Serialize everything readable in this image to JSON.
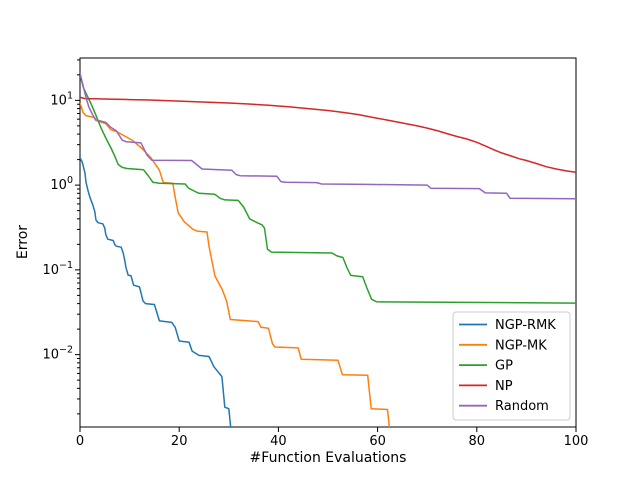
{
  "chart_data": {
    "type": "line",
    "title": "",
    "xlabel": "#Function Evaluations",
    "ylabel": "Error",
    "xlim": [
      0,
      100
    ],
    "ylim": [
      0.0014,
      31.6
    ],
    "yscale": "log",
    "xscale": "linear",
    "grid": false,
    "x_ticks": [
      0,
      20,
      40,
      60,
      80,
      100
    ],
    "x_tick_labels": [
      "0",
      "20",
      "40",
      "60",
      "80",
      "100"
    ],
    "y_tick_exponents": [
      "1",
      "0",
      "−1",
      "−2"
    ],
    "y_tick_values": [
      10,
      1,
      0.1,
      0.01
    ],
    "legend_position": "lower right",
    "axis_color": "#000000",
    "background_color": "#ffffff",
    "legend_border_color": "#cccccc",
    "series": [
      {
        "name": "NGP-RMK",
        "color": "#1f77b4",
        "points": [
          [
            0,
            2.1
          ],
          [
            0.4,
            1.9
          ],
          [
            0.6,
            1.72
          ],
          [
            1,
            1.38
          ],
          [
            1.2,
            1.08
          ],
          [
            1.6,
            0.87
          ],
          [
            2,
            0.72
          ],
          [
            2.6,
            0.58
          ],
          [
            3,
            0.48
          ],
          [
            3.2,
            0.39
          ],
          [
            3.6,
            0.36
          ],
          [
            4.6,
            0.35
          ],
          [
            5,
            0.31
          ],
          [
            5.2,
            0.26
          ],
          [
            5.6,
            0.23
          ],
          [
            6.7,
            0.222
          ],
          [
            7,
            0.2
          ],
          [
            7.3,
            0.19
          ],
          [
            8.3,
            0.185
          ],
          [
            8.7,
            0.158
          ],
          [
            9,
            0.132
          ],
          [
            9.3,
            0.105
          ],
          [
            9.7,
            0.087
          ],
          [
            10.3,
            0.085
          ],
          [
            10.8,
            0.066
          ],
          [
            12,
            0.063
          ],
          [
            12.7,
            0.043
          ],
          [
            13.2,
            0.04
          ],
          [
            15,
            0.039
          ],
          [
            16,
            0.025
          ],
          [
            18.5,
            0.024
          ],
          [
            19.2,
            0.021
          ],
          [
            20,
            0.0145
          ],
          [
            22,
            0.014
          ],
          [
            22.6,
            0.011
          ],
          [
            24,
            0.0098
          ],
          [
            26,
            0.0095
          ],
          [
            27,
            0.0072
          ],
          [
            28.6,
            0.0055
          ],
          [
            29.2,
            0.0024
          ],
          [
            30,
            0.0023
          ],
          [
            30.4,
            0.00135
          ]
        ]
      },
      {
        "name": "NGP-MK",
        "color": "#ff7f0e",
        "points": [
          [
            0,
            9.3
          ],
          [
            0.6,
            7.2
          ],
          [
            1.2,
            6.6
          ],
          [
            2.8,
            6.3
          ],
          [
            3.2,
            5.8
          ],
          [
            5.2,
            5.3
          ],
          [
            6.2,
            4.5
          ],
          [
            7.3,
            4.3
          ],
          [
            9,
            3.8
          ],
          [
            10.5,
            3.4
          ],
          [
            12.5,
            2.7
          ],
          [
            14.3,
            2.1
          ],
          [
            16,
            1.5
          ],
          [
            16.8,
            1.07
          ],
          [
            18.7,
            1.05
          ],
          [
            19.2,
            0.72
          ],
          [
            19.8,
            0.47
          ],
          [
            21,
            0.37
          ],
          [
            22.8,
            0.3
          ],
          [
            23.8,
            0.285
          ],
          [
            25.6,
            0.28
          ],
          [
            26,
            0.19
          ],
          [
            27.2,
            0.085
          ],
          [
            28.7,
            0.058
          ],
          [
            29.6,
            0.042
          ],
          [
            30.3,
            0.026
          ],
          [
            35.9,
            0.0245
          ],
          [
            36.5,
            0.021
          ],
          [
            38,
            0.0205
          ],
          [
            38.8,
            0.0135
          ],
          [
            39.3,
            0.0123
          ],
          [
            44,
            0.012
          ],
          [
            44.6,
            0.0088
          ],
          [
            52,
            0.0086
          ],
          [
            52.9,
            0.0058
          ],
          [
            58,
            0.0057
          ],
          [
            58.7,
            0.0023
          ],
          [
            62,
            0.00225
          ],
          [
            62.4,
            0.00135
          ]
        ]
      },
      {
        "name": "GP",
        "color": "#2ca02c",
        "points": [
          [
            0,
            20
          ],
          [
            0.7,
            14
          ],
          [
            1.4,
            11.5
          ],
          [
            2.2,
            9.2
          ],
          [
            3.2,
            6.7
          ],
          [
            4.2,
            4.8
          ],
          [
            5.2,
            3.6
          ],
          [
            6.3,
            2.7
          ],
          [
            7,
            2.2
          ],
          [
            7.7,
            1.75
          ],
          [
            8.5,
            1.62
          ],
          [
            9.5,
            1.57
          ],
          [
            12.8,
            1.52
          ],
          [
            13.8,
            1.28
          ],
          [
            14.7,
            1.08
          ],
          [
            16,
            1.05
          ],
          [
            21.2,
            1.03
          ],
          [
            21.9,
            0.92
          ],
          [
            23.2,
            0.84
          ],
          [
            24,
            0.8
          ],
          [
            27.2,
            0.78
          ],
          [
            28.2,
            0.7
          ],
          [
            29.2,
            0.67
          ],
          [
            31.9,
            0.66
          ],
          [
            33,
            0.55
          ],
          [
            34.2,
            0.4
          ],
          [
            35.7,
            0.36
          ],
          [
            36.7,
            0.34
          ],
          [
            37.2,
            0.31
          ],
          [
            37.8,
            0.175
          ],
          [
            38.6,
            0.162
          ],
          [
            50.8,
            0.158
          ],
          [
            51.8,
            0.146
          ],
          [
            53,
            0.14
          ],
          [
            53.8,
            0.107
          ],
          [
            54.6,
            0.086
          ],
          [
            57,
            0.083
          ],
          [
            57.8,
            0.062
          ],
          [
            58.8,
            0.045
          ],
          [
            59.8,
            0.042
          ],
          [
            100,
            0.0405
          ]
        ]
      },
      {
        "name": "NP",
        "color": "#d62728",
        "points": [
          [
            0,
            10.9
          ],
          [
            1,
            10.5
          ],
          [
            3,
            10.45
          ],
          [
            6,
            10.35
          ],
          [
            10,
            10.2
          ],
          [
            14,
            10.1
          ],
          [
            18,
            9.9
          ],
          [
            22,
            9.7
          ],
          [
            26,
            9.5
          ],
          [
            30,
            9.3
          ],
          [
            34,
            9.05
          ],
          [
            38,
            8.75
          ],
          [
            42,
            8.4
          ],
          [
            46,
            8.0
          ],
          [
            50,
            7.6
          ],
          [
            53,
            7.2
          ],
          [
            56,
            6.8
          ],
          [
            59,
            6.3
          ],
          [
            62,
            5.85
          ],
          [
            65,
            5.4
          ],
          [
            68,
            5.0
          ],
          [
            70,
            4.7
          ],
          [
            72,
            4.4
          ],
          [
            74,
            4.05
          ],
          [
            76,
            3.75
          ],
          [
            78,
            3.5
          ],
          [
            80,
            3.2
          ],
          [
            82,
            2.85
          ],
          [
            83.5,
            2.6
          ],
          [
            85,
            2.4
          ],
          [
            87,
            2.2
          ],
          [
            88.5,
            2.05
          ],
          [
            90,
            1.95
          ],
          [
            92,
            1.8
          ],
          [
            94,
            1.65
          ],
          [
            96,
            1.55
          ],
          [
            98,
            1.47
          ],
          [
            100,
            1.42
          ]
        ]
      },
      {
        "name": "Random",
        "color": "#9467bd",
        "points": [
          [
            0,
            21
          ],
          [
            0.6,
            15
          ],
          [
            1.2,
            10.8
          ],
          [
            1.8,
            8.3
          ],
          [
            2.6,
            6.7
          ],
          [
            3.2,
            5.9
          ],
          [
            5.2,
            5.5
          ],
          [
            6.2,
            4.8
          ],
          [
            7.3,
            4.4
          ],
          [
            8.5,
            3.4
          ],
          [
            9.3,
            3.25
          ],
          [
            12.3,
            3.15
          ],
          [
            13,
            2.6
          ],
          [
            13.5,
            2.26
          ],
          [
            14.5,
            1.97
          ],
          [
            22.5,
            1.95
          ],
          [
            23.5,
            1.75
          ],
          [
            24.6,
            1.55
          ],
          [
            30.6,
            1.5
          ],
          [
            31.5,
            1.33
          ],
          [
            32.3,
            1.29
          ],
          [
            39.7,
            1.27
          ],
          [
            40.5,
            1.1
          ],
          [
            41.5,
            1.08
          ],
          [
            47.7,
            1.07
          ],
          [
            48.7,
            1.03
          ],
          [
            58,
            1.02
          ],
          [
            70,
            1.0
          ],
          [
            70.7,
            0.92
          ],
          [
            80.5,
            0.91
          ],
          [
            81.7,
            0.81
          ],
          [
            86,
            0.8
          ],
          [
            86.7,
            0.7
          ],
          [
            100,
            0.69
          ]
        ]
      }
    ]
  }
}
